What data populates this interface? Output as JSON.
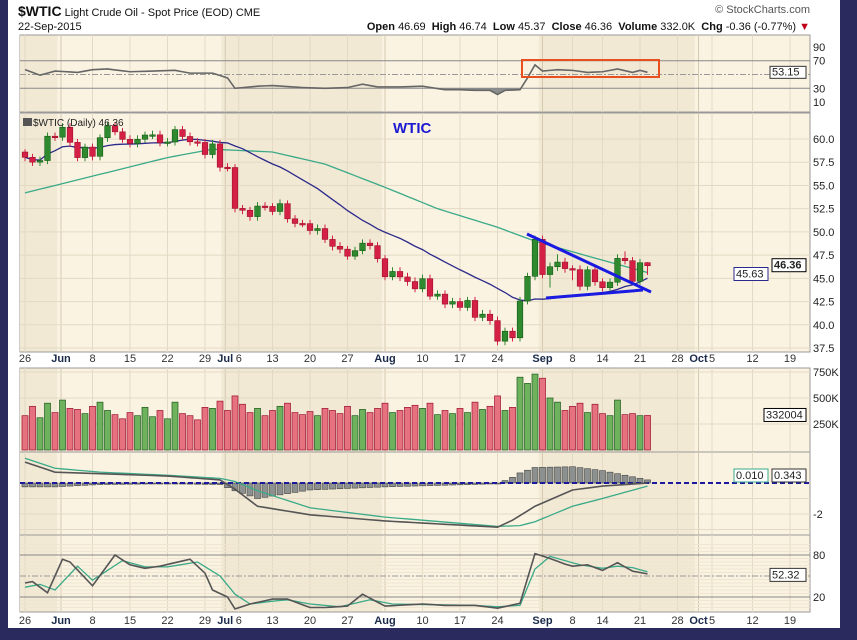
{
  "header": {
    "symbol": "$WTIC",
    "name": "Light Crude Oil - Spot Price (EOD)",
    "exchange": "CME",
    "date": "22-Sep-2015",
    "copyright": "© StockCharts.com",
    "open_label": "Open",
    "open": "46.69",
    "high_label": "High",
    "high": "46.74",
    "low_label": "Low",
    "low": "45.37",
    "close_label": "Close",
    "close": "46.36",
    "volume_label": "Volume",
    "volume": "332.0K",
    "chg_label": "Chg",
    "chg": "-0.36 (-0.77%)",
    "chg_arrow": "▼"
  },
  "colors": {
    "up": "#2f8a2f",
    "down": "#d42045",
    "ma_short": "#2b2a8a",
    "ma_long": "#3aaa88",
    "annotation_line": "#1a1ae0",
    "annotation_box": "#e8501f",
    "background": "#fbf3e2",
    "shaded": "#f2e9d5"
  },
  "chart_data": [
    {
      "type": "line",
      "panel": "rsi",
      "yticks": [
        "90",
        "70",
        "30",
        "10"
      ],
      "levels": [
        70,
        50,
        30
      ],
      "last_value_tag": "53.15",
      "points": [
        [
          0,
          57
        ],
        [
          2,
          49
        ],
        [
          4,
          55
        ],
        [
          7,
          53
        ],
        [
          9,
          57
        ],
        [
          11,
          58
        ],
        [
          14,
          54
        ],
        [
          17,
          55
        ],
        [
          20,
          56
        ],
        [
          22,
          52
        ],
        [
          25,
          52
        ],
        [
          27,
          45
        ],
        [
          28,
          30
        ],
        [
          31,
          33
        ],
        [
          33,
          34
        ],
        [
          37,
          31
        ],
        [
          40,
          30
        ],
        [
          43,
          31
        ],
        [
          45,
          36
        ],
        [
          47,
          32
        ],
        [
          50,
          32
        ],
        [
          53,
          33
        ],
        [
          56,
          28
        ],
        [
          58,
          28
        ],
        [
          60,
          27
        ],
        [
          62,
          27
        ],
        [
          63,
          21
        ],
        [
          64,
          27
        ],
        [
          66,
          28
        ],
        [
          67,
          45
        ],
        [
          68,
          64
        ],
        [
          69,
          55
        ],
        [
          71,
          57
        ],
        [
          73,
          56
        ],
        [
          75,
          53
        ],
        [
          77,
          54
        ],
        [
          79,
          58
        ],
        [
          81,
          53
        ],
        [
          82,
          56
        ],
        [
          83,
          53.15
        ]
      ]
    },
    {
      "type": "candlestick",
      "panel": "price",
      "legend": "$WTIC (Daily) 46.36",
      "annotation_text": "WTIC",
      "ylim": [
        37.5,
        60.0
      ],
      "yticks": [
        "60.0",
        "57.5",
        "55.0",
        "52.5",
        "50.0",
        "47.5",
        "45.0",
        "42.5",
        "40.0",
        "37.5"
      ],
      "last_value_tag": "46.36",
      "ma_tag": "45.63",
      "ohlc": [
        [
          58.6,
          58.9,
          57.6,
          58.03
        ],
        [
          58.03,
          58.4,
          57.1,
          57.51
        ],
        [
          57.51,
          58.1,
          57.1,
          57.68
        ],
        [
          57.68,
          60.7,
          57.3,
          60.3
        ],
        [
          60.3,
          60.7,
          59.8,
          60.2
        ],
        [
          60.2,
          61.7,
          59.8,
          61.26
        ],
        [
          61.26,
          61.7,
          59.2,
          59.64
        ],
        [
          59.64,
          60.0,
          57.6,
          58.0
        ],
        [
          58.0,
          59.5,
          57.6,
          59.13
        ],
        [
          59.13,
          59.5,
          57.7,
          58.14
        ],
        [
          58.14,
          60.5,
          57.7,
          60.14
        ],
        [
          60.14,
          61.8,
          59.7,
          61.43
        ],
        [
          61.43,
          61.8,
          60.4,
          60.77
        ],
        [
          60.77,
          61.2,
          59.6,
          59.96
        ],
        [
          59.96,
          60.4,
          59.1,
          59.52
        ],
        [
          59.52,
          60.4,
          59.1,
          59.97
        ],
        [
          59.97,
          60.8,
          59.6,
          60.43
        ],
        [
          60.43,
          60.9,
          60.0,
          60.45
        ],
        [
          60.45,
          60.9,
          59.2,
          59.61
        ],
        [
          59.61,
          60.1,
          59.2,
          59.68
        ],
        [
          59.68,
          61.4,
          59.3,
          61.01
        ],
        [
          61.01,
          61.4,
          59.9,
          60.27
        ],
        [
          60.27,
          60.7,
          59.3,
          59.7
        ],
        [
          59.7,
          60.1,
          59.2,
          59.63
        ],
        [
          59.63,
          60.0,
          57.9,
          58.33
        ],
        [
          58.33,
          59.9,
          57.9,
          59.47
        ],
        [
          59.47,
          59.9,
          56.5,
          56.96
        ],
        [
          56.96,
          57.4,
          56.5,
          56.93
        ],
        [
          56.93,
          57.3,
          52.1,
          52.53
        ],
        [
          52.53,
          52.9,
          51.9,
          52.33
        ],
        [
          52.33,
          52.7,
          51.2,
          51.65
        ],
        [
          51.65,
          53.2,
          51.2,
          52.78
        ],
        [
          52.78,
          53.2,
          52.3,
          52.74
        ],
        [
          52.74,
          53.1,
          51.8,
          52.2
        ],
        [
          52.2,
          53.5,
          51.8,
          53.04
        ],
        [
          53.04,
          53.4,
          51.0,
          51.41
        ],
        [
          51.41,
          51.8,
          50.5,
          50.91
        ],
        [
          50.91,
          51.3,
          50.5,
          50.89
        ],
        [
          50.89,
          51.3,
          49.7,
          50.15
        ],
        [
          50.15,
          50.8,
          49.7,
          50.36
        ],
        [
          50.36,
          50.8,
          48.8,
          49.19
        ],
        [
          49.19,
          49.6,
          48.0,
          48.45
        ],
        [
          48.45,
          48.9,
          47.7,
          48.14
        ],
        [
          48.14,
          48.5,
          47.0,
          47.39
        ],
        [
          47.39,
          48.4,
          47.0,
          47.98
        ],
        [
          47.98,
          49.2,
          47.6,
          48.79
        ],
        [
          48.79,
          49.2,
          48.1,
          48.52
        ],
        [
          48.52,
          48.9,
          46.7,
          47.12
        ],
        [
          47.12,
          47.5,
          44.8,
          45.17
        ],
        [
          45.17,
          46.2,
          44.8,
          45.74
        ],
        [
          45.74,
          46.2,
          44.7,
          45.15
        ],
        [
          45.15,
          45.6,
          44.2,
          44.66
        ],
        [
          44.66,
          45.1,
          43.5,
          43.87
        ],
        [
          43.87,
          45.4,
          43.5,
          44.96
        ],
        [
          44.96,
          45.4,
          42.7,
          43.08
        ],
        [
          43.08,
          43.7,
          42.7,
          43.3
        ],
        [
          43.3,
          43.7,
          41.8,
          42.23
        ],
        [
          42.23,
          42.9,
          41.8,
          42.5
        ],
        [
          42.5,
          42.9,
          41.5,
          41.87
        ],
        [
          41.87,
          43.0,
          41.5,
          42.62
        ],
        [
          42.62,
          43.0,
          40.4,
          40.8
        ],
        [
          40.8,
          41.6,
          40.4,
          41.14
        ],
        [
          41.14,
          41.6,
          40.0,
          40.45
        ],
        [
          40.45,
          40.9,
          37.8,
          38.24
        ],
        [
          38.24,
          39.7,
          37.8,
          39.31
        ],
        [
          39.31,
          39.7,
          38.2,
          38.6
        ],
        [
          38.6,
          43.0,
          38.2,
          42.56
        ],
        [
          42.56,
          45.6,
          42.2,
          45.22
        ],
        [
          45.22,
          49.6,
          44.8,
          49.2
        ],
        [
          49.2,
          49.6,
          45.0,
          45.41
        ],
        [
          45.41,
          46.7,
          44.0,
          46.25
        ],
        [
          46.25,
          47.6,
          45.8,
          46.75
        ],
        [
          46.75,
          47.2,
          45.6,
          46.05
        ],
        [
          46.05,
          46.4,
          44.8,
          45.94
        ],
        [
          45.94,
          46.4,
          43.7,
          44.15
        ],
        [
          44.15,
          46.3,
          43.7,
          45.92
        ],
        [
          45.92,
          46.3,
          44.2,
          44.63
        ],
        [
          44.63,
          45.0,
          43.6,
          44.0
        ],
        [
          44.0,
          45.0,
          43.6,
          44.59
        ],
        [
          44.59,
          47.6,
          44.2,
          47.15
        ],
        [
          47.15,
          47.9,
          46.5,
          46.9
        ],
        [
          46.9,
          47.3,
          44.3,
          44.68
        ],
        [
          44.68,
          47.1,
          44.3,
          46.68
        ],
        [
          46.69,
          46.74,
          45.37,
          46.36
        ]
      ],
      "ma_long_points": [
        [
          0,
          54.2
        ],
        [
          9,
          56.0
        ],
        [
          19,
          58.0
        ],
        [
          25,
          58.9
        ],
        [
          33,
          58.6
        ],
        [
          40,
          57.3
        ],
        [
          48,
          54.8
        ],
        [
          55,
          52.5
        ],
        [
          63,
          50.5
        ],
        [
          68,
          49.0
        ],
        [
          75,
          47.4
        ],
        [
          83,
          45.63
        ]
      ]
    },
    {
      "type": "bar",
      "panel": "volume",
      "yticks": [
        "750K",
        "500K",
        "250K"
      ],
      "last_value_tag": "332004",
      "values_k": [
        330,
        420,
        310,
        450,
        360,
        480,
        400,
        390,
        350,
        420,
        460,
        380,
        340,
        300,
        360,
        330,
        410,
        320,
        380,
        300,
        460,
        350,
        330,
        290,
        410,
        400,
        470,
        380,
        520,
        440,
        360,
        400,
        330,
        380,
        420,
        450,
        360,
        340,
        370,
        330,
        400,
        380,
        350,
        420,
        330,
        390,
        360,
        400,
        450,
        360,
        380,
        410,
        430,
        400,
        450,
        340,
        380,
        350,
        400,
        360,
        460,
        390,
        420,
        520,
        380,
        410,
        700,
        640,
        730,
        690,
        500,
        460,
        380,
        420,
        450,
        360,
        440,
        350,
        330,
        480,
        340,
        350,
        330,
        332
      ]
    },
    {
      "type": "line",
      "panel": "macd",
      "yticks": [
        "-2"
      ],
      "tags": [
        "0.343",
        "0.010"
      ],
      "macd_points": [
        [
          0,
          1.35
        ],
        [
          4,
          0.7
        ],
        [
          10,
          0.6
        ],
        [
          19,
          0.45
        ],
        [
          26,
          0.2
        ],
        [
          28,
          -0.4
        ],
        [
          31,
          -1.5
        ],
        [
          38,
          -2.05
        ],
        [
          48,
          -2.45
        ],
        [
          63,
          -2.85
        ],
        [
          65,
          -2.4
        ],
        [
          68,
          -1.5
        ],
        [
          73,
          -0.45
        ],
        [
          77,
          -0.2
        ],
        [
          83,
          0.0
        ]
      ],
      "signal_points": [
        [
          0,
          1.6
        ],
        [
          4,
          0.95
        ],
        [
          10,
          0.7
        ],
        [
          19,
          0.5
        ],
        [
          26,
          0.3
        ],
        [
          28,
          0.1
        ],
        [
          31,
          -0.5
        ],
        [
          38,
          -1.6
        ],
        [
          48,
          -2.2
        ],
        [
          63,
          -2.8
        ],
        [
          66,
          -2.75
        ],
        [
          68,
          -2.5
        ],
        [
          73,
          -1.5
        ],
        [
          77,
          -1.0
        ],
        [
          83,
          -0.2
        ]
      ]
    },
    {
      "type": "line",
      "panel": "stochastic",
      "yticks": [
        "80",
        "20"
      ],
      "levels": [
        80,
        50,
        20
      ],
      "last_value_tag": "52.32",
      "k_points": [
        [
          0,
          40
        ],
        [
          1,
          42
        ],
        [
          3,
          26
        ],
        [
          5,
          74
        ],
        [
          6,
          70
        ],
        [
          9,
          36
        ],
        [
          12,
          80
        ],
        [
          14,
          66
        ],
        [
          16,
          61
        ],
        [
          18,
          64
        ],
        [
          22,
          74
        ],
        [
          24,
          54
        ],
        [
          25,
          30
        ],
        [
          27,
          20
        ],
        [
          28,
          3
        ],
        [
          30,
          10
        ],
        [
          33,
          17
        ],
        [
          35,
          17
        ],
        [
          38,
          5
        ],
        [
          40,
          5
        ],
        [
          43,
          7
        ],
        [
          45,
          24
        ],
        [
          48,
          7
        ],
        [
          53,
          10
        ],
        [
          56,
          8
        ],
        [
          60,
          8
        ],
        [
          63,
          4
        ],
        [
          66,
          11
        ],
        [
          68,
          82
        ],
        [
          70,
          75
        ],
        [
          72,
          67
        ],
        [
          73,
          64
        ],
        [
          75,
          66
        ],
        [
          77,
          58
        ],
        [
          79,
          69
        ],
        [
          81,
          57
        ],
        [
          83,
          53
        ]
      ],
      "d_points": [
        [
          0,
          34
        ],
        [
          2,
          38
        ],
        [
          4,
          30
        ],
        [
          7,
          64
        ],
        [
          9,
          44
        ],
        [
          11,
          58
        ],
        [
          13,
          72
        ],
        [
          16,
          63
        ],
        [
          19,
          63
        ],
        [
          23,
          70
        ],
        [
          26,
          50
        ],
        [
          28,
          24
        ],
        [
          30,
          10
        ],
        [
          33,
          14
        ],
        [
          35,
          16
        ],
        [
          38,
          10
        ],
        [
          42,
          6
        ],
        [
          46,
          16
        ],
        [
          49,
          10
        ],
        [
          54,
          9
        ],
        [
          60,
          8
        ],
        [
          63,
          6
        ],
        [
          66,
          8
        ],
        [
          68,
          60
        ],
        [
          70,
          78
        ],
        [
          72,
          72
        ],
        [
          74,
          66
        ],
        [
          77,
          61
        ],
        [
          79,
          64
        ],
        [
          81,
          62
        ],
        [
          83,
          56
        ]
      ]
    }
  ],
  "x_axis": {
    "labels": [
      {
        "text": "26",
        "day": 0,
        "bold": false
      },
      {
        "text": "Jun",
        "day": 4.8,
        "bold": true
      },
      {
        "text": "8",
        "day": 9,
        "bold": false
      },
      {
        "text": "15",
        "day": 14,
        "bold": false
      },
      {
        "text": "22",
        "day": 19,
        "bold": false
      },
      {
        "text": "29",
        "day": 24,
        "bold": false
      },
      {
        "text": "Jul",
        "day": 26.7,
        "bold": true
      },
      {
        "text": "6",
        "day": 28.5,
        "bold": false
      },
      {
        "text": "13",
        "day": 33,
        "bold": false
      },
      {
        "text": "20",
        "day": 38,
        "bold": false
      },
      {
        "text": "27",
        "day": 43,
        "bold": false
      },
      {
        "text": "Aug",
        "day": 48,
        "bold": true
      },
      {
        "text": "10",
        "day": 53,
        "bold": false
      },
      {
        "text": "17",
        "day": 58,
        "bold": false
      },
      {
        "text": "24",
        "day": 63,
        "bold": false
      },
      {
        "text": "Sep",
        "day": 69,
        "bold": true
      },
      {
        "text": "8",
        "day": 73,
        "bold": false
      },
      {
        "text": "14",
        "day": 77,
        "bold": false
      },
      {
        "text": "21",
        "day": 82,
        "bold": false
      },
      {
        "text": "28",
        "day": 87,
        "bold": false
      },
      {
        "text": "Oct",
        "day": 89.8,
        "bold": true
      },
      {
        "text": "5",
        "day": 91.6,
        "bold": false
      },
      {
        "text": "12",
        "day": 97,
        "bold": false
      },
      {
        "text": "19",
        "day": 102,
        "bold": false
      }
    ]
  }
}
